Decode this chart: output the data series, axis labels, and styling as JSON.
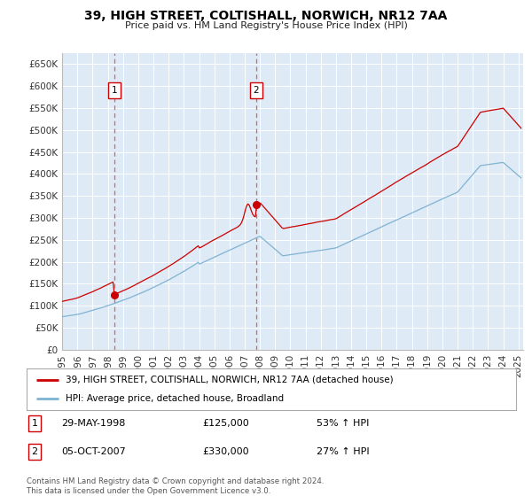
{
  "title": "39, HIGH STREET, COLTISHALL, NORWICH, NR12 7AA",
  "subtitle": "Price paid vs. HM Land Registry's House Price Index (HPI)",
  "legend_line1": "39, HIGH STREET, COLTISHALL, NORWICH, NR12 7AA (detached house)",
  "legend_line2": "HPI: Average price, detached house, Broadland",
  "footer": "Contains HM Land Registry data © Crown copyright and database right 2024.\nThis data is licensed under the Open Government Licence v3.0.",
  "sale1_date": "29-MAY-1998",
  "sale1_price": "£125,000",
  "sale1_hpi": "53% ↑ HPI",
  "sale1_year": 1998.41,
  "sale1_value": 125000,
  "sale2_date": "05-OCT-2007",
  "sale2_price": "£330,000",
  "sale2_hpi": "27% ↑ HPI",
  "sale2_year": 2007.76,
  "sale2_value": 330000,
  "ylim_top": 675000,
  "xlim_start": 1995.0,
  "xlim_end": 2025.3,
  "yticks": [
    0,
    50000,
    100000,
    150000,
    200000,
    250000,
    300000,
    350000,
    400000,
    450000,
    500000,
    550000,
    600000,
    650000
  ],
  "ytick_labels": [
    "£0",
    "£50K",
    "£100K",
    "£150K",
    "£200K",
    "£250K",
    "£300K",
    "£350K",
    "£400K",
    "£450K",
    "£500K",
    "£550K",
    "£600K",
    "£650K"
  ],
  "xticks": [
    1995,
    1996,
    1997,
    1998,
    1999,
    2000,
    2001,
    2002,
    2003,
    2004,
    2005,
    2006,
    2007,
    2008,
    2009,
    2010,
    2011,
    2012,
    2013,
    2014,
    2015,
    2016,
    2017,
    2018,
    2019,
    2020,
    2021,
    2022,
    2023,
    2024,
    2025
  ],
  "red_line_color": "#cc0000",
  "blue_line_color": "#7fb3d3",
  "vline_color": "#e06060",
  "grid_bg_color": "#deeaf5",
  "marker_box_color": "#cc0000",
  "grid_color": "#ffffff"
}
